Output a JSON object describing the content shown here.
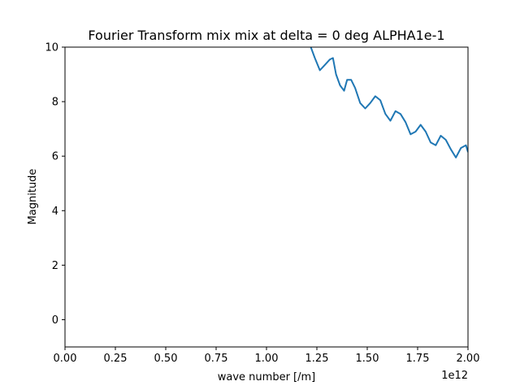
{
  "chart_data": {
    "type": "line",
    "title": "Fourier Transform mix mix at delta = 0 deg ALPHA1e-1",
    "xlabel": "wave number [/m]",
    "ylabel": "Magnitude",
    "x_offset_label": "1e12",
    "xlim": [
      0,
      2.0
    ],
    "ylim": [
      -1,
      10
    ],
    "x_ticks": [
      "0.00",
      "0.25",
      "0.50",
      "0.75",
      "1.00",
      "1.25",
      "1.50",
      "1.75",
      "2.00"
    ],
    "y_ticks": [
      "0",
      "2",
      "4",
      "6",
      "8",
      "10"
    ],
    "grid": false,
    "series": [
      {
        "color": "#1f77b4",
        "x": [
          1.215,
          1.24,
          1.265,
          1.29,
          1.315,
          1.33,
          1.345,
          1.365,
          1.385,
          1.4,
          1.42,
          1.44,
          1.465,
          1.49,
          1.515,
          1.54,
          1.565,
          1.59,
          1.615,
          1.64,
          1.665,
          1.69,
          1.715,
          1.74,
          1.765,
          1.79,
          1.815,
          1.84,
          1.865,
          1.89,
          1.915,
          1.94,
          1.965,
          1.99,
          2.0
        ],
        "y": [
          10.1,
          9.6,
          9.15,
          9.35,
          9.55,
          9.6,
          9.0,
          8.6,
          8.4,
          8.8,
          8.8,
          8.5,
          7.95,
          7.75,
          7.95,
          8.2,
          8.05,
          7.55,
          7.3,
          7.65,
          7.55,
          7.25,
          6.8,
          6.9,
          7.15,
          6.9,
          6.5,
          6.4,
          6.75,
          6.6,
          6.25,
          5.95,
          6.3,
          6.4,
          6.15
        ]
      }
    ]
  }
}
